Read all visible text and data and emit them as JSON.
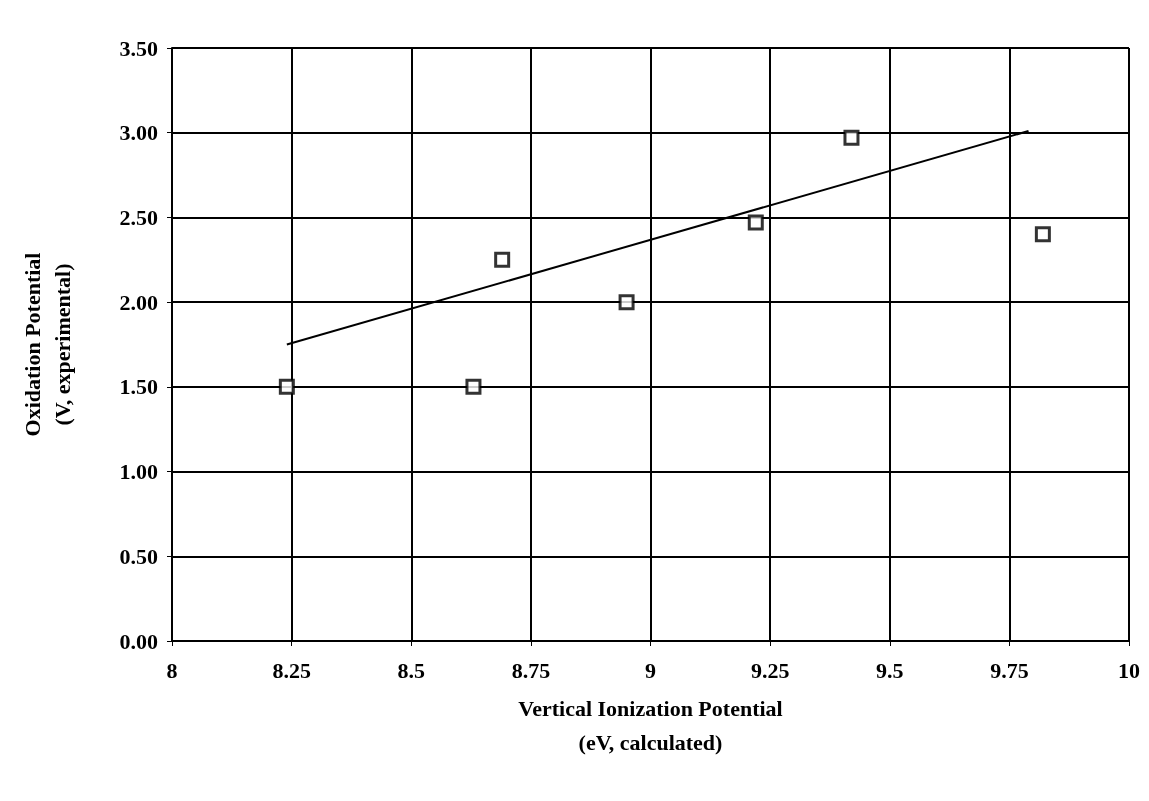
{
  "chart_data": {
    "type": "scatter",
    "xlabel": "Vertical Ionization Potential\n(eV, calculated)",
    "ylabel": "Oxidation Potential\n(V, experimental)",
    "series": [
      {
        "color": "#000000",
        "x": [
          8.24,
          8.63,
          8.69,
          8.95,
          9.22,
          9.42,
          9.82
        ],
        "values": [
          1.5,
          1.5,
          2.25,
          2.0,
          2.47,
          2.97,
          2.4
        ],
        "marker": "square"
      },
      {
        "type": "line",
        "color": "#000000",
        "x": [
          8.24,
          9.79
        ],
        "values": [
          1.75,
          3.01
        ],
        "marker": "none"
      }
    ],
    "xlim": [
      8,
      10
    ],
    "xticks": [
      8,
      8.25,
      8.5,
      8.75,
      9,
      9.25,
      9.5,
      9.75,
      10
    ],
    "ylim": [
      0,
      3.5
    ],
    "yticks": [
      {
        "value": 0,
        "label": "0.00"
      },
      {
        "value": 0.5,
        "label": "0.50"
      },
      {
        "value": 1,
        "label": "1.00"
      },
      {
        "value": 1.5,
        "label": "1.50"
      },
      {
        "value": 2,
        "label": "2.00"
      },
      {
        "value": 2.5,
        "label": "2.50"
      },
      {
        "value": 3,
        "label": "3.00"
      },
      {
        "value": 3.5,
        "label": "3.50"
      }
    ],
    "grid": true
  }
}
